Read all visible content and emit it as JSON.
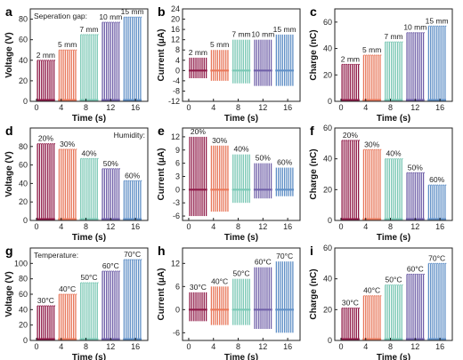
{
  "colors": [
    "#8e1846",
    "#e8775a",
    "#79c7b4",
    "#6f5fa8",
    "#5f8fc6"
  ],
  "chart_data": [
    {
      "type": "line",
      "letter": "a",
      "xlabel": "Time (s)",
      "ylabel": "Voltage (V)",
      "xlim": [
        -1,
        18
      ],
      "xticks": [
        0,
        4,
        8,
        12,
        16
      ],
      "ylim": [
        0,
        90
      ],
      "yticks": [
        0,
        20,
        40,
        60,
        80
      ],
      "annotation": "Seperation gap:",
      "series": [
        {
          "label": "2 mm",
          "x": [
            0,
            3
          ],
          "high": 40,
          "low": 0
        },
        {
          "label": "5 mm",
          "x": [
            3.5,
            6.5
          ],
          "high": 50,
          "low": 0
        },
        {
          "label": "7 mm",
          "x": [
            7,
            10
          ],
          "high": 65,
          "low": 0
        },
        {
          "label": "10 mm",
          "x": [
            10.5,
            13.5
          ],
          "high": 77,
          "low": 0
        },
        {
          "label": "15 mm",
          "x": [
            14,
            17
          ],
          "high": 82,
          "low": 0
        }
      ]
    },
    {
      "type": "line",
      "letter": "b",
      "xlabel": "Time (s)",
      "ylabel": "Current (μA)",
      "xlim": [
        -1,
        18
      ],
      "xticks": [
        0,
        4,
        8,
        12,
        16
      ],
      "ylim": [
        -12,
        24
      ],
      "yticks": [
        -12,
        -8,
        -4,
        0,
        4,
        8,
        12,
        16,
        20,
        24
      ],
      "series": [
        {
          "label": "2 mm",
          "x": [
            0,
            3
          ],
          "high": 5,
          "low": -3
        },
        {
          "label": "5 mm",
          "x": [
            3.5,
            6.5
          ],
          "high": 8,
          "low": -4
        },
        {
          "label": "7 mm",
          "x": [
            7,
            10
          ],
          "high": 12,
          "low": -5
        },
        {
          "label": "10 mm",
          "x": [
            10.5,
            13.5
          ],
          "high": 12,
          "low": -6
        },
        {
          "label": "15 mm",
          "x": [
            14,
            17
          ],
          "high": 14,
          "low": -6
        }
      ]
    },
    {
      "type": "line",
      "letter": "c",
      "xlabel": "Time (s)",
      "ylabel": "Charge (nC)",
      "xlim": [
        -1,
        18
      ],
      "xticks": [
        0,
        4,
        8,
        12,
        16
      ],
      "ylim": [
        0,
        70
      ],
      "yticks": [
        0,
        20,
        40,
        60
      ],
      "series": [
        {
          "label": "2 mm",
          "x": [
            0,
            3
          ],
          "high": 28,
          "low": 0
        },
        {
          "label": "5 mm",
          "x": [
            3.5,
            6.5
          ],
          "high": 35,
          "low": 0
        },
        {
          "label": "7 mm",
          "x": [
            7,
            10
          ],
          "high": 45,
          "low": 0
        },
        {
          "label": "10 mm",
          "x": [
            10.5,
            13.5
          ],
          "high": 52,
          "low": 0
        },
        {
          "label": "15 mm",
          "x": [
            14,
            17
          ],
          "high": 57,
          "low": 0
        }
      ]
    },
    {
      "type": "line",
      "letter": "d",
      "xlabel": "Time (s)",
      "ylabel": "Voltage (V)",
      "xlim": [
        -1,
        18
      ],
      "xticks": [
        0,
        4,
        8,
        12,
        16
      ],
      "ylim": [
        0,
        100
      ],
      "yticks": [
        0,
        20,
        40,
        60,
        80
      ],
      "annotation": "Humidity:",
      "series": [
        {
          "label": "20%",
          "x": [
            0,
            3
          ],
          "high": 83,
          "low": 0
        },
        {
          "label": "30%",
          "x": [
            3.5,
            6.5
          ],
          "high": 77,
          "low": 0
        },
        {
          "label": "40%",
          "x": [
            7,
            10
          ],
          "high": 67,
          "low": 0
        },
        {
          "label": "50%",
          "x": [
            10.5,
            13.5
          ],
          "high": 56,
          "low": 0
        },
        {
          "label": "60%",
          "x": [
            14,
            17
          ],
          "high": 43,
          "low": 0
        }
      ]
    },
    {
      "type": "line",
      "letter": "e",
      "xlabel": "Time (s)",
      "ylabel": "Current (μA)",
      "xlim": [
        -1,
        18
      ],
      "xticks": [
        0,
        4,
        8,
        12,
        16
      ],
      "ylim": [
        -7,
        14
      ],
      "yticks": [
        -6,
        -3,
        0,
        3,
        6,
        9,
        12
      ],
      "series": [
        {
          "label": "20%",
          "x": [
            0,
            3
          ],
          "high": 12,
          "low": -6
        },
        {
          "label": "30%",
          "x": [
            3.5,
            6.5
          ],
          "high": 10,
          "low": -5
        },
        {
          "label": "40%",
          "x": [
            7,
            10
          ],
          "high": 8,
          "low": -3
        },
        {
          "label": "50%",
          "x": [
            10.5,
            13.5
          ],
          "high": 6,
          "low": -2
        },
        {
          "label": "60%",
          "x": [
            14,
            17
          ],
          "high": 5,
          "low": -1.5
        }
      ]
    },
    {
      "type": "line",
      "letter": "f",
      "xlabel": "Time (s)",
      "ylabel": "Charge (nC)",
      "xlim": [
        -1,
        18
      ],
      "xticks": [
        0,
        4,
        8,
        12,
        16
      ],
      "ylim": [
        0,
        60
      ],
      "yticks": [
        0,
        20,
        40,
        60
      ],
      "series": [
        {
          "label": "20%",
          "x": [
            0,
            3
          ],
          "high": 52,
          "low": 0
        },
        {
          "label": "30%",
          "x": [
            3.5,
            6.5
          ],
          "high": 46,
          "low": 0
        },
        {
          "label": "40%",
          "x": [
            7,
            10
          ],
          "high": 40,
          "low": 0
        },
        {
          "label": "50%",
          "x": [
            10.5,
            13.5
          ],
          "high": 31,
          "low": 0
        },
        {
          "label": "60%",
          "x": [
            14,
            17
          ],
          "high": 23,
          "low": 0
        }
      ]
    },
    {
      "type": "line",
      "letter": "g",
      "xlabel": "Time (s)",
      "ylabel": "Voltage (V)",
      "xlim": [
        -1,
        18
      ],
      "xticks": [
        0,
        4,
        8,
        12,
        16
      ],
      "ylim": [
        0,
        120
      ],
      "yticks": [
        0,
        20,
        40,
        60,
        80,
        100
      ],
      "annotation": "Temperature:",
      "series": [
        {
          "label": "30°C",
          "x": [
            0,
            3
          ],
          "high": 45,
          "low": 0
        },
        {
          "label": "40°C",
          "x": [
            3.5,
            6.5
          ],
          "high": 60,
          "low": 0
        },
        {
          "label": "50°C",
          "x": [
            7,
            10
          ],
          "high": 75,
          "low": 0
        },
        {
          "label": "60°C",
          "x": [
            10.5,
            13.5
          ],
          "high": 90,
          "low": 0
        },
        {
          "label": "70°C",
          "x": [
            14,
            17
          ],
          "high": 105,
          "low": 0
        }
      ]
    },
    {
      "type": "line",
      "letter": "h",
      "xlabel": "Time (s)",
      "ylabel": "Current (μA)",
      "xlim": [
        -1,
        18
      ],
      "xticks": [
        0,
        4,
        8,
        12,
        16
      ],
      "ylim": [
        -8,
        16
      ],
      "yticks": [
        -6,
        0,
        6,
        12
      ],
      "series": [
        {
          "label": "30°C",
          "x": [
            0,
            3
          ],
          "high": 4.5,
          "low": -3
        },
        {
          "label": "40°C",
          "x": [
            3.5,
            6.5
          ],
          "high": 6,
          "low": -4
        },
        {
          "label": "50°C",
          "x": [
            7,
            10
          ],
          "high": 8,
          "low": -4
        },
        {
          "label": "60°C",
          "x": [
            10.5,
            13.5
          ],
          "high": 11,
          "low": -5
        },
        {
          "label": "70°C",
          "x": [
            14,
            17
          ],
          "high": 12.5,
          "low": -6
        }
      ]
    },
    {
      "type": "line",
      "letter": "i",
      "xlabel": "Time (s)",
      "ylabel": "Charge (nC)",
      "xlim": [
        -1,
        18
      ],
      "xticks": [
        0,
        4,
        8,
        12,
        16
      ],
      "ylim": [
        0,
        60
      ],
      "yticks": [
        0,
        20,
        40,
        60
      ],
      "series": [
        {
          "label": "30°C",
          "x": [
            0,
            3
          ],
          "high": 21,
          "low": 0
        },
        {
          "label": "40°C",
          "x": [
            3.5,
            6.5
          ],
          "high": 29,
          "low": 0
        },
        {
          "label": "50°C",
          "x": [
            7,
            10
          ],
          "high": 36,
          "low": 0
        },
        {
          "label": "60°C",
          "x": [
            10.5,
            13.5
          ],
          "high": 43,
          "low": 0
        },
        {
          "label": "70°C",
          "x": [
            14,
            17
          ],
          "high": 50,
          "low": 0
        }
      ]
    }
  ]
}
